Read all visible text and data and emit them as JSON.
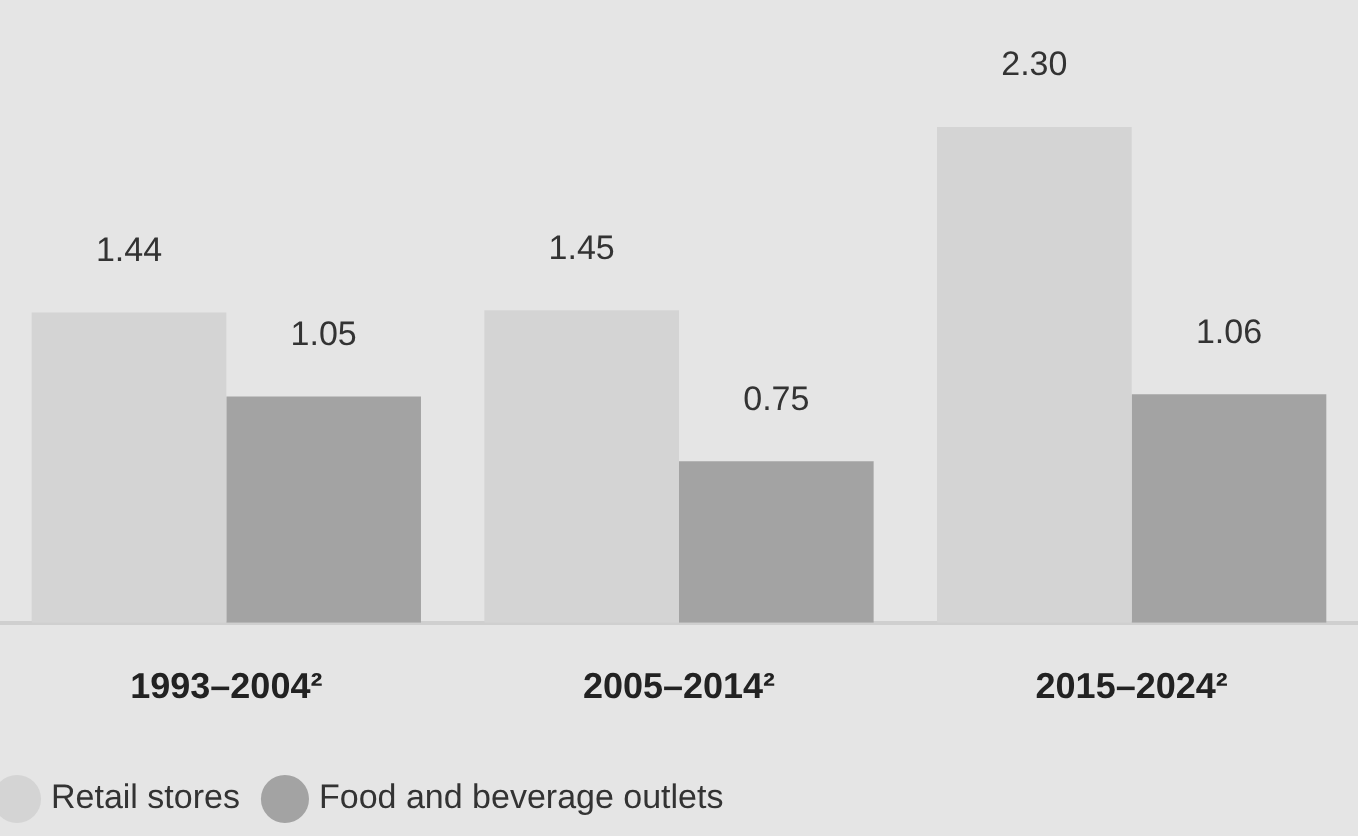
{
  "chart_data": {
    "type": "bar",
    "categories": [
      "1993–2004²",
      "2005–2014²",
      "2015–2024²"
    ],
    "series": [
      {
        "name": "Retail stores",
        "color": "#d4d4d4",
        "values": [
          1.44,
          1.45,
          2.3
        ],
        "value_labels": [
          "1.44",
          "1.45",
          "2.30"
        ]
      },
      {
        "name": "Food and beverage outlets",
        "color": "#a3a3a3",
        "values": [
          1.05,
          0.75,
          1.06
        ],
        "value_labels": [
          "1.05",
          "0.75",
          "1.06"
        ]
      }
    ],
    "grid": false,
    "legend": "bottom left",
    "tick_labels": "x"
  }
}
